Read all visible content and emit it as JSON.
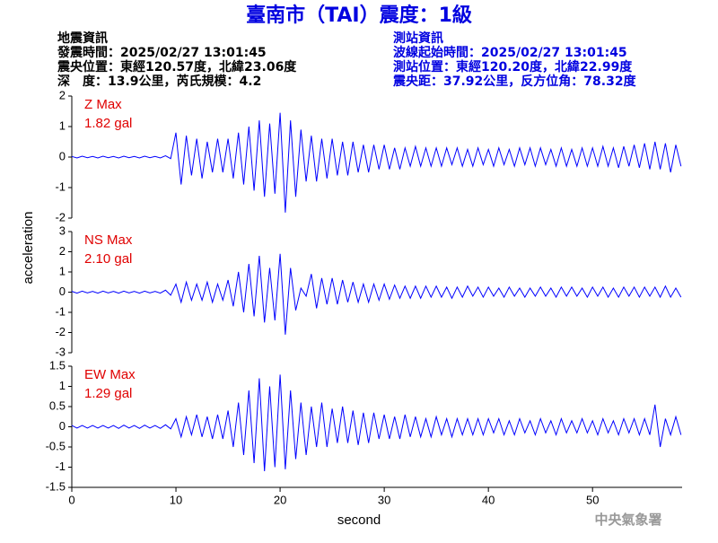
{
  "header": {
    "title": "臺南市（TAI）震度：1級",
    "left": [
      "地震資訊",
      "發震時間：2025/02/27 13:01:45",
      "震央位置：東經120.57度，北緯23.06度",
      "深　度：13.9公里，芮氏規模：4.2"
    ],
    "right": [
      "測站資訊",
      "波線起始時間：2025/02/27 13:01:45",
      "測站位置：東經120.20度，北緯22.99度",
      "震央距：37.92公里，反方位角：78.32度"
    ]
  },
  "footer": "中央氣象署",
  "chart_data": {
    "type": "line",
    "xlabel": "second",
    "ylabel": "acceleration",
    "xlim": [
      0,
      58.6
    ],
    "xticks": [
      0,
      10,
      20,
      30,
      40,
      50
    ],
    "x": [
      0,
      0.5,
      1,
      1.5,
      2,
      2.5,
      3,
      3.5,
      4,
      4.5,
      5,
      5.5,
      6,
      6.5,
      7,
      7.5,
      8,
      8.5,
      9,
      9.5,
      10,
      10.5,
      11,
      11.5,
      12,
      12.5,
      13,
      13.5,
      14,
      14.5,
      15,
      15.5,
      16,
      16.5,
      17,
      17.5,
      18,
      18.5,
      19,
      19.5,
      20,
      20.5,
      21,
      21.5,
      22,
      22.5,
      23,
      23.5,
      24,
      24.5,
      25,
      25.5,
      26,
      26.5,
      27,
      27.5,
      28,
      28.5,
      29,
      29.5,
      30,
      30.5,
      31,
      31.5,
      32,
      32.5,
      33,
      33.5,
      34,
      34.5,
      35,
      35.5,
      36,
      36.5,
      37,
      37.5,
      38,
      38.5,
      39,
      39.5,
      40,
      40.5,
      41,
      41.5,
      42,
      42.5,
      43,
      43.5,
      44,
      44.5,
      45,
      45.5,
      46,
      46.5,
      47,
      47.5,
      48,
      48.5,
      49,
      49.5,
      50,
      50.5,
      51,
      51.5,
      52,
      52.5,
      53,
      53.5,
      54,
      54.5,
      55,
      55.5,
      56,
      56.5,
      57,
      57.5,
      58,
      58.5
    ],
    "panels": [
      {
        "name": "Z Max",
        "max_label": "1.82 gal",
        "color": "#0000ff",
        "label_color": "#e00000",
        "ylim": [
          -2,
          2
        ],
        "yticks": [
          -2,
          -1,
          0,
          1,
          2
        ],
        "values": [
          0.02,
          -0.03,
          0.03,
          -0.02,
          0.02,
          -0.03,
          0.03,
          -0.02,
          0.02,
          -0.03,
          0.03,
          -0.02,
          0.02,
          -0.03,
          0.03,
          -0.02,
          0.02,
          -0.03,
          0.04,
          -0.05,
          0.8,
          -0.9,
          0.7,
          -0.6,
          0.6,
          -0.7,
          0.5,
          -0.5,
          0.6,
          -0.5,
          0.6,
          -0.7,
          0.8,
          -0.9,
          1.0,
          -1.1,
          1.2,
          -1.3,
          1.1,
          -1.2,
          1.45,
          -1.82,
          1.2,
          -1.3,
          0.9,
          -0.8,
          0.7,
          -0.8,
          0.6,
          -0.7,
          0.6,
          -0.6,
          0.5,
          -0.6,
          0.5,
          -0.5,
          0.4,
          -0.5,
          0.4,
          -0.4,
          0.4,
          -0.4,
          0.3,
          -0.4,
          0.3,
          -0.3,
          0.35,
          -0.3,
          0.3,
          -0.3,
          0.3,
          -0.3,
          0.3,
          -0.25,
          0.3,
          -0.3,
          0.25,
          -0.3,
          0.3,
          -0.25,
          0.25,
          -0.3,
          0.3,
          -0.25,
          0.25,
          -0.3,
          0.3,
          -0.25,
          0.3,
          -0.3,
          0.3,
          -0.25,
          0.25,
          -0.3,
          0.3,
          -0.3,
          0.25,
          -0.3,
          0.3,
          -0.3,
          0.3,
          -0.3,
          0.35,
          -0.3,
          0.3,
          -0.35,
          0.35,
          -0.3,
          0.4,
          -0.35,
          0.45,
          -0.4,
          0.5,
          -0.4,
          0.45,
          -0.5,
          0.4,
          -0.3
        ]
      },
      {
        "name": "NS Max",
        "max_label": "2.10 gal",
        "color": "#0000ff",
        "label_color": "#e00000",
        "ylim": [
          -3,
          3
        ],
        "yticks": [
          -3,
          -2,
          -1,
          0,
          1,
          2,
          3
        ],
        "values": [
          0.04,
          -0.05,
          0.05,
          -0.04,
          0.04,
          -0.05,
          0.05,
          -0.04,
          0.04,
          -0.05,
          0.05,
          -0.04,
          0.04,
          -0.05,
          0.05,
          -0.04,
          0.04,
          -0.05,
          0.1,
          -0.15,
          0.4,
          -0.5,
          0.5,
          -0.4,
          0.4,
          -0.4,
          0.5,
          -0.5,
          0.4,
          -0.4,
          0.6,
          -0.7,
          1.0,
          -1.0,
          1.4,
          -1.2,
          1.8,
          -1.5,
          1.2,
          -1.4,
          1.9,
          -2.1,
          1.2,
          -0.9,
          0.2,
          -0.2,
          0.9,
          -0.8,
          0.7,
          -0.6,
          0.7,
          -0.6,
          0.6,
          -0.5,
          0.5,
          -0.5,
          0.4,
          -0.5,
          0.4,
          -0.4,
          0.4,
          -0.35,
          0.35,
          -0.3,
          0.3,
          -0.3,
          0.3,
          -0.3,
          0.3,
          -0.25,
          0.3,
          -0.25,
          0.25,
          -0.3,
          0.25,
          -0.25,
          0.3,
          -0.2,
          0.25,
          -0.25,
          0.25,
          -0.2,
          0.2,
          -0.25,
          0.25,
          -0.2,
          0.2,
          -0.25,
          0.2,
          -0.2,
          0.25,
          -0.2,
          0.2,
          -0.25,
          0.25,
          -0.2,
          0.25,
          -0.2,
          0.2,
          -0.25,
          0.25,
          -0.2,
          0.25,
          -0.25,
          0.2,
          -0.25,
          0.25,
          -0.2,
          0.25,
          -0.25,
          0.25,
          -0.2,
          0.25,
          -0.25,
          0.3,
          -0.25,
          0.2,
          -0.25
        ]
      },
      {
        "name": "EW Max",
        "max_label": "1.29 gal",
        "color": "#0000ff",
        "label_color": "#e00000",
        "ylim": [
          -1.5,
          1.5
        ],
        "yticks": [
          -1.5,
          -1,
          -0.5,
          0,
          0.5,
          1,
          1.5
        ],
        "values": [
          0.03,
          -0.03,
          0.03,
          -0.03,
          0.03,
          -0.03,
          0.03,
          -0.03,
          0.03,
          -0.04,
          0.04,
          -0.03,
          0.03,
          -0.04,
          0.04,
          -0.03,
          0.03,
          -0.04,
          0.05,
          -0.05,
          0.2,
          -0.25,
          0.25,
          -0.2,
          0.3,
          -0.25,
          0.25,
          -0.3,
          0.3,
          -0.3,
          0.4,
          -0.5,
          0.6,
          -0.7,
          0.9,
          -0.9,
          1.2,
          -1.1,
          1.0,
          -1.0,
          1.29,
          -1.05,
          0.9,
          -0.8,
          0.6,
          -0.7,
          0.5,
          -0.5,
          0.6,
          -0.5,
          0.45,
          -0.4,
          0.5,
          -0.4,
          0.4,
          -0.45,
          0.35,
          -0.4,
          0.35,
          -0.3,
          0.3,
          -0.3,
          0.25,
          -0.3,
          0.3,
          -0.25,
          0.25,
          -0.25,
          0.2,
          -0.25,
          0.25,
          -0.2,
          0.2,
          -0.25,
          0.2,
          -0.2,
          0.2,
          -0.2,
          0.2,
          -0.2,
          0.2,
          -0.15,
          0.2,
          -0.2,
          0.15,
          -0.2,
          0.2,
          -0.15,
          0.15,
          -0.2,
          0.2,
          -0.15,
          0.15,
          -0.2,
          0.2,
          -0.15,
          0.15,
          -0.15,
          0.2,
          -0.15,
          0.15,
          -0.2,
          0.2,
          -0.15,
          0.15,
          -0.2,
          0.2,
          -0.15,
          0.2,
          -0.2,
          0.2,
          -0.2,
          0.55,
          -0.5,
          0.2,
          -0.2,
          0.25,
          -0.2
        ]
      }
    ]
  }
}
